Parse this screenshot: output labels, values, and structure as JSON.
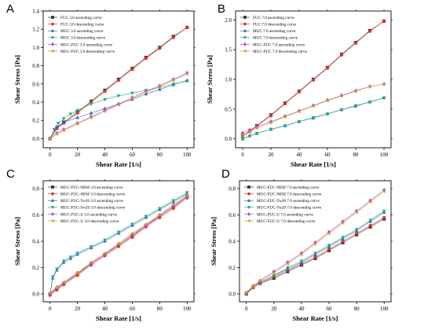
{
  "chart_data": [
    {
      "panel": "A",
      "type": "scatter",
      "xlabel": "Shear Rate [1/s]",
      "ylabel": "Shear Stress [Pa]",
      "xlim": [
        -5,
        105
      ],
      "ylim": [
        -0.1,
        1.4
      ],
      "xticks": [
        0,
        20,
        40,
        60,
        80,
        100
      ],
      "yticks": [
        0.0,
        0.2,
        0.4,
        0.6,
        0.8,
        1.0,
        1.2,
        1.4
      ],
      "ytick_decimals": 1,
      "legend_position": "top-left",
      "series": [
        {
          "name": "FUC 3.0 ascending curve",
          "color": "#333333",
          "marker": "square",
          "x": [
            0,
            5,
            10,
            20,
            30,
            40,
            50,
            60,
            70,
            80,
            90,
            100
          ],
          "y": [
            0.0,
            0.12,
            0.18,
            0.29,
            0.41,
            0.53,
            0.65,
            0.77,
            0.89,
            1.0,
            1.12,
            1.22
          ]
        },
        {
          "name": "FUC 3.0 descending curve",
          "color": "#e8322c",
          "marker": "circle",
          "x": [
            0,
            5,
            10,
            20,
            30,
            40,
            50,
            60,
            70,
            80,
            90,
            100
          ],
          "y": [
            0.0,
            0.11,
            0.17,
            0.28,
            0.4,
            0.52,
            0.64,
            0.76,
            0.88,
            0.99,
            1.11,
            1.22
          ]
        },
        {
          "name": "MUC 3.0 ascending curve",
          "color": "#2e62c7",
          "marker": "triangle-up",
          "x": [
            0,
            5,
            10,
            20,
            30,
            40,
            50,
            60,
            70,
            80,
            90,
            100
          ],
          "y": [
            0.0,
            0.13,
            0.18,
            0.23,
            0.28,
            0.33,
            0.38,
            0.43,
            0.49,
            0.54,
            0.59,
            0.64
          ]
        },
        {
          "name": "MUC 3.0 descending curve",
          "color": "#1fa67a",
          "marker": "triangle-down",
          "x": [
            0,
            3,
            6,
            10,
            15,
            20,
            30,
            40,
            50,
            60,
            70,
            80,
            90,
            100
          ],
          "y": [
            0.0,
            0.1,
            0.17,
            0.22,
            0.27,
            0.31,
            0.38,
            0.43,
            0.47,
            0.5,
            0.53,
            0.56,
            0.6,
            0.63
          ]
        },
        {
          "name": "MUC-FUC 3.0 ascending curve",
          "color": "#b04fd8",
          "marker": "diamond",
          "x": [
            0,
            5,
            10,
            20,
            30,
            40,
            50,
            60,
            70,
            80,
            90,
            100
          ],
          "y": [
            0.0,
            0.06,
            0.1,
            0.17,
            0.24,
            0.31,
            0.38,
            0.45,
            0.52,
            0.58,
            0.65,
            0.72
          ]
        },
        {
          "name": "MUC-FUC 3.0 descending curve",
          "color": "#d49a1e",
          "marker": "triangle-left",
          "x": [
            0,
            5,
            10,
            20,
            30,
            40,
            50,
            60,
            70,
            80,
            90,
            100
          ],
          "y": [
            0.0,
            0.05,
            0.09,
            0.16,
            0.23,
            0.3,
            0.37,
            0.44,
            0.51,
            0.57,
            0.64,
            0.71
          ]
        }
      ]
    },
    {
      "panel": "B",
      "type": "scatter",
      "xlabel": "Shear Rate [1/s]",
      "ylabel": "Shear Stress [Pa]",
      "xlim": [
        -5,
        105
      ],
      "ylim": [
        -0.15,
        2.15
      ],
      "xticks": [
        0,
        20,
        40,
        60,
        80,
        100
      ],
      "yticks": [
        0.0,
        0.5,
        1.0,
        1.5,
        2.0
      ],
      "ytick_decimals": 1,
      "legend_position": "top-left",
      "series": [
        {
          "name": "FUC 7.0 ascending curve",
          "color": "#333333",
          "marker": "square",
          "x": [
            0,
            5,
            10,
            20,
            30,
            40,
            50,
            60,
            70,
            80,
            90,
            100
          ],
          "y": [
            0.05,
            0.13,
            0.22,
            0.4,
            0.6,
            0.8,
            1.0,
            1.2,
            1.42,
            1.62,
            1.82,
            1.98
          ]
        },
        {
          "name": "FUC 7.0 descending curve",
          "color": "#e8322c",
          "marker": "circle",
          "x": [
            0,
            5,
            10,
            20,
            30,
            40,
            50,
            60,
            70,
            80,
            90,
            100
          ],
          "y": [
            0.04,
            0.12,
            0.21,
            0.39,
            0.59,
            0.79,
            0.99,
            1.19,
            1.41,
            1.61,
            1.81,
            1.98
          ]
        },
        {
          "name": "MUC 7.0 ascending curve",
          "color": "#2e62c7",
          "marker": "triangle-up",
          "x": [
            0,
            5,
            10,
            20,
            30,
            40,
            50,
            60,
            70,
            80,
            90,
            100
          ],
          "y": [
            0.0,
            0.05,
            0.09,
            0.16,
            0.22,
            0.29,
            0.35,
            0.42,
            0.49,
            0.55,
            0.62,
            0.69
          ]
        },
        {
          "name": "MUC 7.0 descending curve",
          "color": "#1fa67a",
          "marker": "triangle-down",
          "x": [
            0,
            5,
            10,
            20,
            30,
            40,
            50,
            60,
            70,
            80,
            90,
            100
          ],
          "y": [
            0.0,
            0.05,
            0.09,
            0.16,
            0.22,
            0.29,
            0.36,
            0.42,
            0.49,
            0.56,
            0.62,
            0.69
          ]
        },
        {
          "name": "MUC-FUC 7.0 ascending curve",
          "color": "#b04fd8",
          "marker": "diamond",
          "x": [
            0,
            5,
            10,
            20,
            30,
            40,
            50,
            60,
            70,
            80,
            90,
            100
          ],
          "y": [
            0.1,
            0.15,
            0.2,
            0.29,
            0.38,
            0.47,
            0.56,
            0.65,
            0.73,
            0.81,
            0.88,
            0.92
          ]
        },
        {
          "name": "MUC-FUC 7.0 descending curve",
          "color": "#d49a1e",
          "marker": "triangle-left",
          "x": [
            0,
            5,
            10,
            20,
            30,
            40,
            50,
            60,
            70,
            80,
            90,
            100
          ],
          "y": [
            0.05,
            0.12,
            0.18,
            0.27,
            0.37,
            0.46,
            0.55,
            0.64,
            0.72,
            0.8,
            0.88,
            0.92
          ]
        }
      ]
    },
    {
      "panel": "C",
      "type": "scatter",
      "xlabel": "Shear Rate [1/s]",
      "ylabel": "Shear Stress [Pa]",
      "xlim": [
        -5,
        105
      ],
      "ylim": [
        -0.06,
        0.86
      ],
      "xticks": [
        0,
        20,
        40,
        60,
        80,
        100
      ],
      "yticks": [
        0.0,
        0.2,
        0.4,
        0.6,
        0.8
      ],
      "ytick_decimals": 1,
      "legend_position": "top-left",
      "series": [
        {
          "name": "MUC-FUC-NEM 3.0 ascending curve",
          "color": "#333333",
          "marker": "square",
          "x": [
            0,
            5,
            10,
            20,
            30,
            40,
            50,
            60,
            70,
            80,
            90,
            100
          ],
          "y": [
            0.0,
            0.04,
            0.08,
            0.15,
            0.23,
            0.3,
            0.37,
            0.44,
            0.52,
            0.59,
            0.66,
            0.74
          ]
        },
        {
          "name": "MUC-FUC-NEM 3.0 descending curve",
          "color": "#e8322c",
          "marker": "circle",
          "x": [
            0,
            5,
            10,
            20,
            30,
            40,
            50,
            60,
            70,
            80,
            90,
            100
          ],
          "y": [
            -0.01,
            0.03,
            0.07,
            0.14,
            0.22,
            0.29,
            0.36,
            0.43,
            0.51,
            0.58,
            0.65,
            0.73
          ]
        },
        {
          "name": "MUC-FUC-Tw20 3.0 ascending curve",
          "color": "#2e62c7",
          "marker": "triangle-up",
          "x": [
            0,
            2,
            5,
            10,
            15,
            20,
            30,
            40,
            50,
            60,
            70,
            80,
            90,
            100
          ],
          "y": [
            0.0,
            0.12,
            0.18,
            0.24,
            0.27,
            0.3,
            0.35,
            0.4,
            0.46,
            0.52,
            0.58,
            0.64,
            0.7,
            0.76
          ]
        },
        {
          "name": "MUC-FUC-Tw20 3.0 descending curve",
          "color": "#1fa67a",
          "marker": "triangle-down",
          "x": [
            0,
            2,
            5,
            10,
            15,
            20,
            30,
            40,
            50,
            60,
            70,
            80,
            90,
            100
          ],
          "y": [
            0.0,
            0.13,
            0.19,
            0.25,
            0.28,
            0.31,
            0.36,
            0.41,
            0.47,
            0.53,
            0.59,
            0.65,
            0.71,
            0.77
          ]
        },
        {
          "name": "MUC-FUC-U 3.0 ascending curve",
          "color": "#b04fd8",
          "marker": "diamond",
          "x": [
            0,
            5,
            10,
            20,
            30,
            40,
            50,
            60,
            70,
            80,
            90,
            100
          ],
          "y": [
            0.0,
            0.05,
            0.08,
            0.16,
            0.23,
            0.3,
            0.38,
            0.45,
            0.52,
            0.6,
            0.67,
            0.74
          ]
        },
        {
          "name": "MUC-FUC-U 3.0 descending curve",
          "color": "#d49a1e",
          "marker": "triangle-left",
          "x": [
            0,
            5,
            10,
            20,
            30,
            40,
            50,
            60,
            70,
            80,
            90,
            100
          ],
          "y": [
            0.01,
            0.05,
            0.09,
            0.16,
            0.24,
            0.31,
            0.38,
            0.46,
            0.53,
            0.6,
            0.68,
            0.75
          ]
        }
      ]
    },
    {
      "panel": "D",
      "type": "scatter",
      "xlabel": "Shear Rate [1/s]",
      "ylabel": "Shear Stress [Pa]",
      "xlim": [
        -5,
        105
      ],
      "ylim": [
        -0.06,
        0.86
      ],
      "xticks": [
        0,
        20,
        40,
        60,
        80,
        100
      ],
      "yticks": [
        0.0,
        0.2,
        0.4,
        0.6,
        0.8
      ],
      "ytick_decimals": 1,
      "legend_position": "top-left",
      "series": [
        {
          "name": "MUC-FUC-NEM 7.0 ascending curve",
          "color": "#333333",
          "marker": "square",
          "x": [
            0,
            5,
            10,
            20,
            30,
            40,
            50,
            60,
            70,
            80,
            90,
            100
          ],
          "y": [
            0.0,
            0.05,
            0.08,
            0.12,
            0.17,
            0.22,
            0.27,
            0.33,
            0.39,
            0.45,
            0.51,
            0.57
          ]
        },
        {
          "name": "MUC-FUC-NEM 7.0 descending curve",
          "color": "#e8322c",
          "marker": "circle",
          "x": [
            0,
            5,
            10,
            20,
            30,
            40,
            50,
            60,
            70,
            80,
            90,
            100
          ],
          "y": [
            0.0,
            0.05,
            0.08,
            0.13,
            0.18,
            0.23,
            0.28,
            0.34,
            0.4,
            0.46,
            0.52,
            0.58
          ]
        },
        {
          "name": "MUC-FUC-Tw20 7.0 ascending curve",
          "color": "#2e62c7",
          "marker": "triangle-up",
          "x": [
            0,
            5,
            10,
            20,
            30,
            40,
            50,
            60,
            70,
            80,
            90,
            100
          ],
          "y": [
            0.0,
            0.06,
            0.09,
            0.14,
            0.19,
            0.24,
            0.3,
            0.36,
            0.42,
            0.48,
            0.55,
            0.62
          ]
        },
        {
          "name": "MUC-FUC-Tw20 7.0 descending curve",
          "color": "#1fa67a",
          "marker": "triangle-down",
          "x": [
            0,
            5,
            10,
            20,
            30,
            40,
            50,
            60,
            70,
            80,
            90,
            100
          ],
          "y": [
            0.0,
            0.06,
            0.09,
            0.14,
            0.2,
            0.25,
            0.31,
            0.37,
            0.43,
            0.49,
            0.56,
            0.63
          ]
        },
        {
          "name": "MUC-FUC-U 7.0 ascending curve",
          "color": "#b04fd8",
          "marker": "diamond",
          "x": [
            0,
            5,
            10,
            20,
            30,
            40,
            50,
            60,
            70,
            80,
            90,
            100
          ],
          "y": [
            0.01,
            0.06,
            0.1,
            0.17,
            0.24,
            0.31,
            0.39,
            0.47,
            0.55,
            0.63,
            0.71,
            0.79
          ]
        },
        {
          "name": "MUC-FUC-U 7.0 descending curve",
          "color": "#d49a1e",
          "marker": "triangle-left",
          "x": [
            0,
            5,
            10,
            20,
            30,
            40,
            50,
            60,
            70,
            80,
            90,
            100
          ],
          "y": [
            0.01,
            0.06,
            0.1,
            0.16,
            0.23,
            0.3,
            0.38,
            0.46,
            0.54,
            0.62,
            0.7,
            0.78
          ]
        }
      ]
    }
  ]
}
